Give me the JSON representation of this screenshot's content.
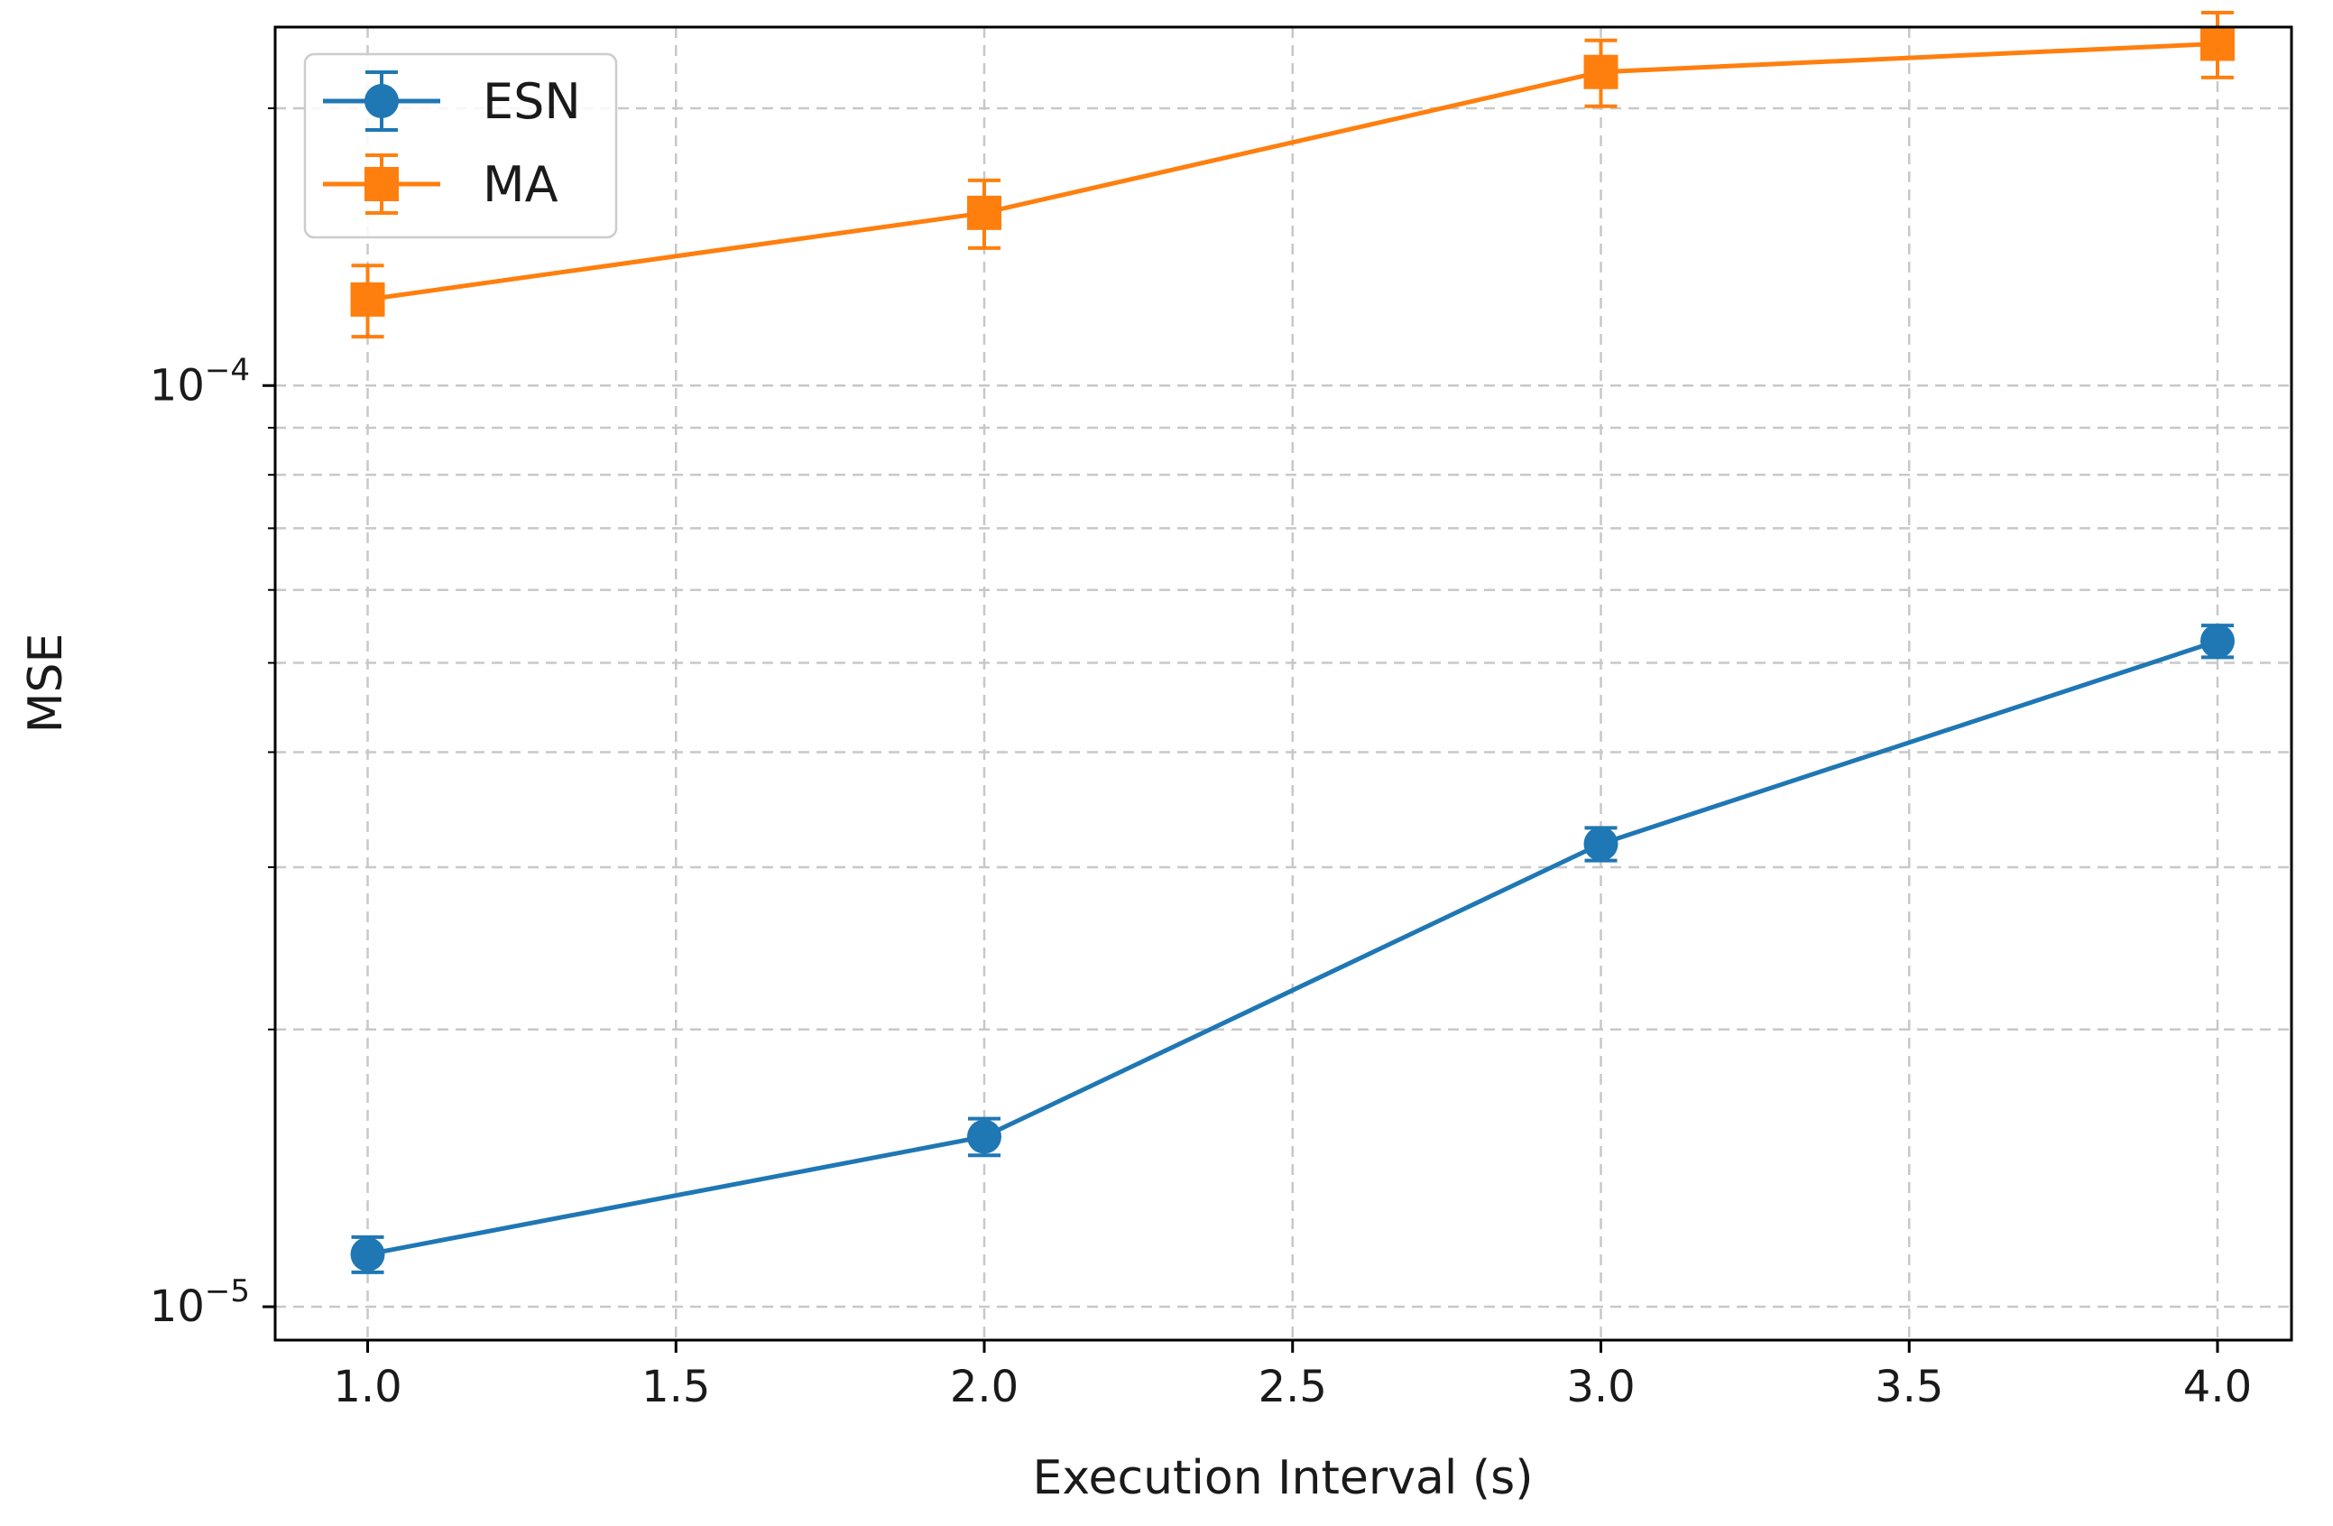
{
  "chart_data": {
    "type": "line",
    "title": "",
    "xlabel": "Execution Interval (s)",
    "ylabel": "MSE",
    "xlim": [
      0.85,
      4.12
    ],
    "ylim": [
      9.2e-06,
      0.000245
    ],
    "yscale": "log",
    "grid": true,
    "legend_position": "top-left",
    "x_ticks": [
      1.0,
      1.5,
      2.0,
      2.5,
      3.0,
      3.5,
      4.0
    ],
    "x_tick_labels": [
      "1.0",
      "1.5",
      "2.0",
      "2.5",
      "3.0",
      "3.5",
      "4.0"
    ],
    "y_major_ticks": [
      1e-05,
      0.0001
    ],
    "y_tick_labels": [
      {
        "base": "10",
        "exp": "−5"
      },
      {
        "base": "10",
        "exp": "−4"
      }
    ],
    "series": [
      {
        "name": "ESN",
        "color": "#1f77b4",
        "marker": "circle",
        "x": [
          1.0,
          2.0,
          3.0,
          4.0
        ],
        "y": [
          1.14e-05,
          1.53e-05,
          3.18e-05,
          5.28e-05
        ],
        "err": [
          5e-07,
          7e-07,
          1.3e-06,
          2.1e-06
        ]
      },
      {
        "name": "MA",
        "color": "#ff7f0e",
        "marker": "square",
        "x": [
          1.0,
          2.0,
          3.0,
          4.0
        ],
        "y": [
          0.000124,
          0.000154,
          0.000219,
          0.000235
        ],
        "err": [
          1.1e-05,
          1.3e-05,
          1.8e-05,
          1.9e-05
        ]
      }
    ]
  }
}
